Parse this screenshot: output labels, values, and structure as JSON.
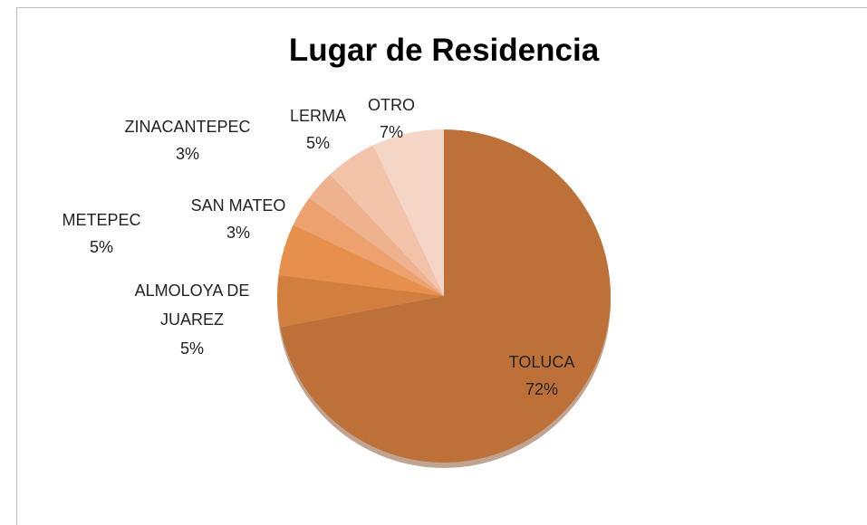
{
  "chart_data": {
    "type": "pie",
    "title": "Lugar de Residencia",
    "categories": [
      "TOLUCA",
      "ALMOLOYA DE JUAREZ",
      "METEPEC",
      "SAN MATEO",
      "ZINACANTEPEC",
      "LERMA",
      "OTRO"
    ],
    "values": [
      72,
      5,
      5,
      3,
      3,
      5,
      7
    ],
    "value_labels": [
      "72%",
      "5%",
      "5%",
      "3%",
      "3%",
      "5%",
      "7%"
    ],
    "colors": [
      "#bd7139",
      "#d27e3f",
      "#e78f4c",
      "#eca16f",
      "#efb28f",
      "#f2c3a8",
      "#f5d5c6"
    ]
  }
}
